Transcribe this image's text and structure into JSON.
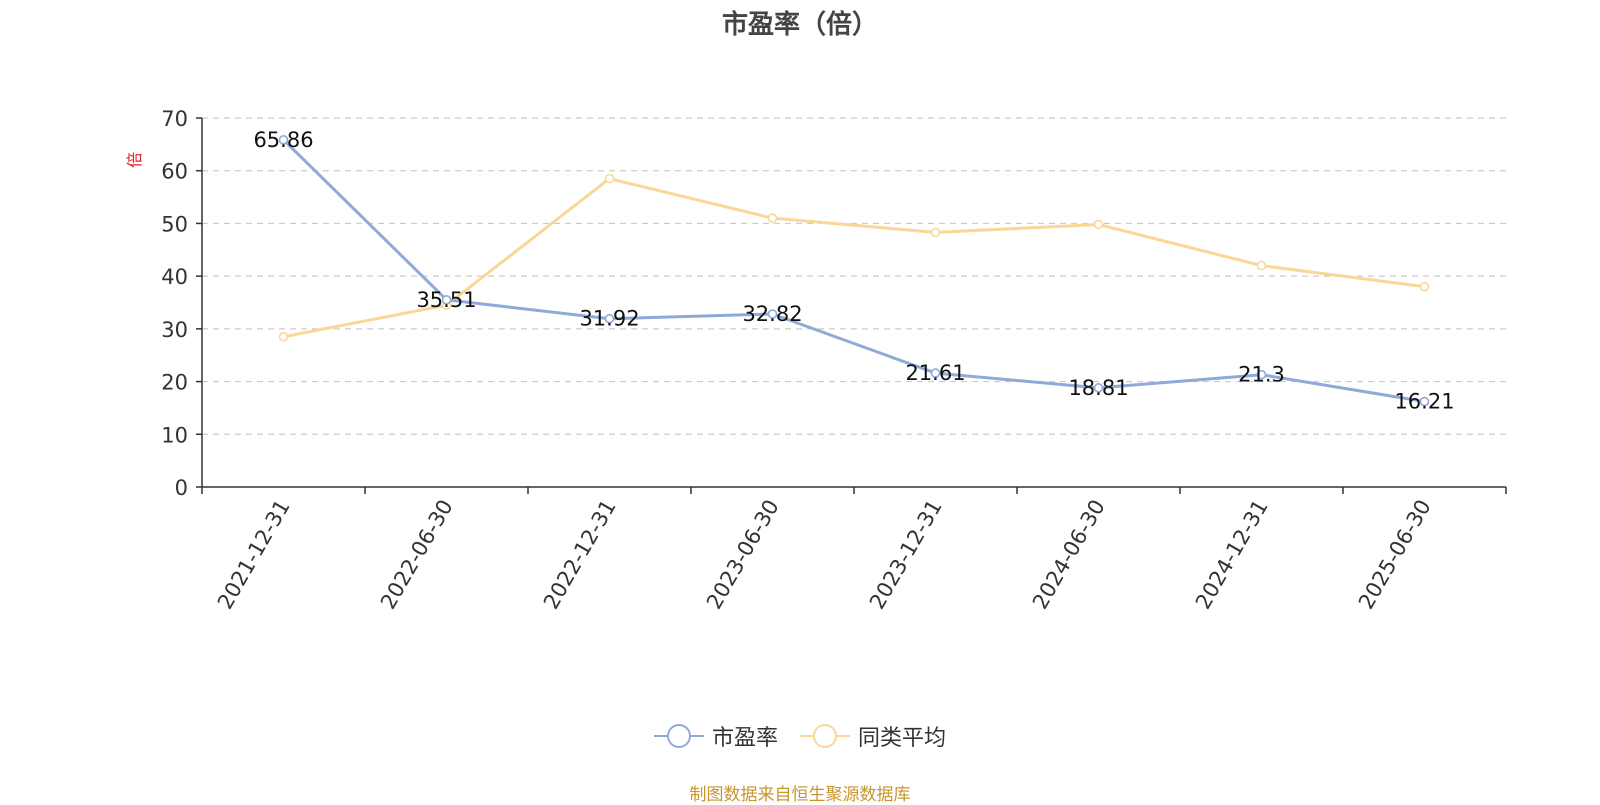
{
  "title": "市盈率（倍）",
  "source_note": "制图数据来自恒生聚源数据库",
  "chart_data": {
    "type": "line",
    "title": "市盈率（倍）",
    "ylabel": "倍",
    "xlabel": "",
    "ylim": [
      0,
      70
    ],
    "yticks": [
      0,
      10,
      20,
      30,
      40,
      50,
      60,
      70
    ],
    "grid": true,
    "legend_position": "bottom",
    "categories": [
      "2021-12-31",
      "2022-06-30",
      "2022-12-31",
      "2023-06-30",
      "2023-12-31",
      "2024-06-30",
      "2024-12-31",
      "2025-06-30"
    ],
    "series": [
      {
        "name": "市盈率",
        "color": "#8eaad8",
        "values": [
          65.86,
          35.51,
          31.92,
          32.82,
          21.61,
          18.81,
          21.3,
          16.21
        ],
        "labels": [
          "65.86",
          "35.51",
          "31.92",
          "32.82",
          "21.61",
          "18.81",
          "21.3",
          "16.21"
        ],
        "show_labels": true
      },
      {
        "name": "同类平均",
        "color": "#fad797",
        "values": [
          28.5,
          34.5,
          58.5,
          51.0,
          48.3,
          49.8,
          42.0,
          38.0
        ],
        "show_labels": false
      }
    ]
  }
}
